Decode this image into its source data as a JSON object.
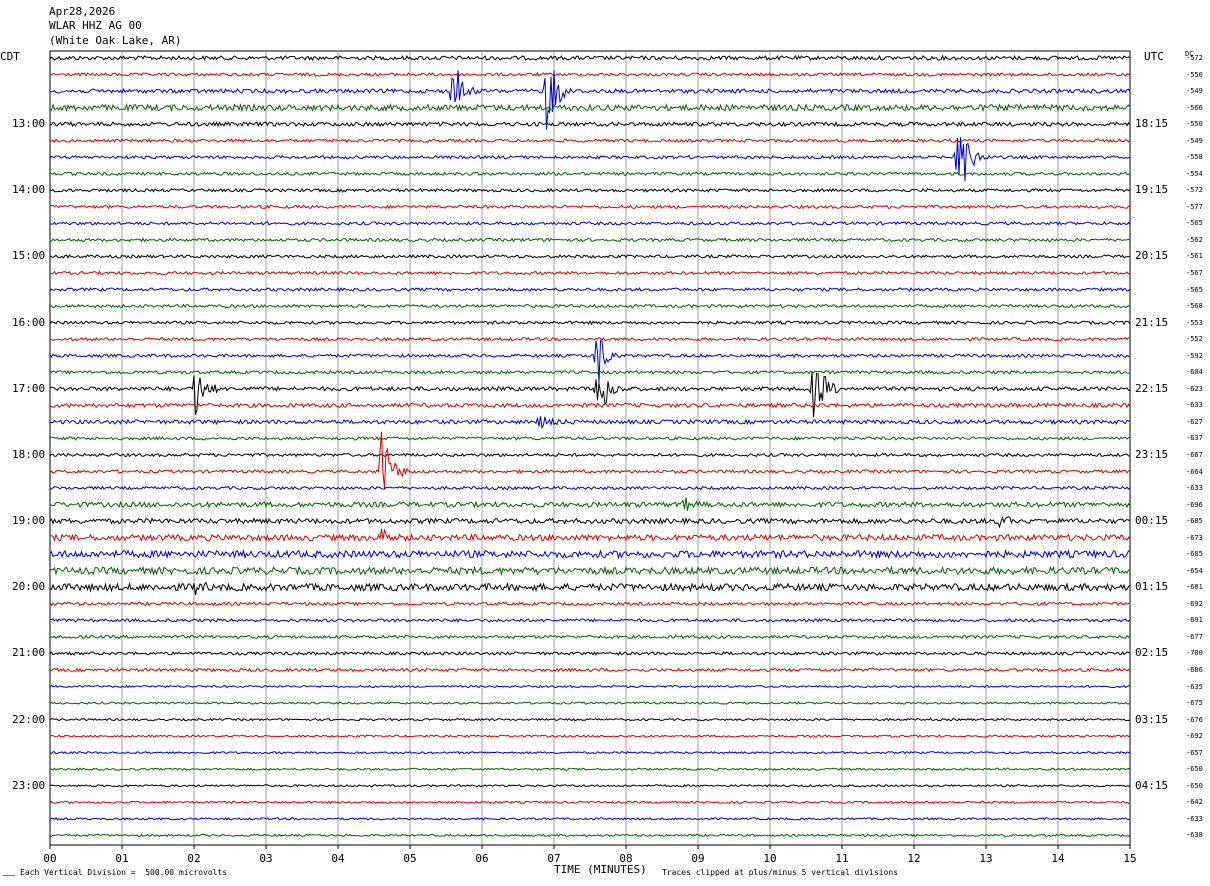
{
  "header": {
    "date": "Apr28,2026",
    "station": "WLAR HHZ AG 00",
    "location": "(White Oak Lake, AR)"
  },
  "left_tz": "CDT",
  "right_tz": "UTC",
  "dc_header": "DC",
  "footer": {
    "scale": "Each Vertical Division =  500.00 microvolts",
    "xlabel": "TIME (MINUTES)",
    "clip": "Traces clipped at plus/minus 5 vertical divisions",
    "corner": "⸺"
  },
  "colors": {
    "trace_cycle": [
      "#000000",
      "#dd0000",
      "#0000cc",
      "#006600"
    ],
    "grid": "#888888"
  },
  "chart_data": {
    "type": "line",
    "title": "WLAR HHZ AG 00",
    "xlabel": "TIME (MINUTES)",
    "ylabel": "",
    "x_ticks": [
      "00",
      "01",
      "02",
      "03",
      "04",
      "05",
      "06",
      "07",
      "08",
      "09",
      "10",
      "11",
      "12",
      "13",
      "14",
      "15"
    ],
    "xlim": [
      0,
      15
    ],
    "grid": true,
    "left_hour_labels": [
      "13:00",
      "14:00",
      "15:00",
      "16:00",
      "17:00",
      "18:00",
      "19:00",
      "20:00",
      "21:00",
      "22:00",
      "23:00"
    ],
    "right_hour_labels": [
      "18:15",
      "19:15",
      "20:15",
      "21:15",
      "22:15",
      "23:15",
      "00:15",
      "01:15",
      "02:15",
      "03:15",
      "04:15"
    ],
    "label_first_row": 4,
    "label_row_step": 4,
    "dc_offsets": [
      "-572",
      "-550",
      "-549",
      "-566",
      "-550",
      "-549",
      "-558",
      "-554",
      "-572",
      "-577",
      "-565",
      "-562",
      "-561",
      "-567",
      "-565",
      "-568",
      "-553",
      "-552",
      "-592",
      "-604",
      "-623",
      "-633",
      "-627",
      "-637",
      "-667",
      "-664",
      "-633",
      "-696",
      "-685",
      "-673",
      "-685",
      "-654",
      "-681",
      "-692",
      "-691",
      "-677",
      "-700",
      "-686",
      "-635",
      "-675",
      "-676",
      "-692",
      "-657",
      "-650",
      "-650",
      "-642",
      "-633",
      "-638"
    ],
    "row_noise_level": [
      2,
      1.5,
      2,
      3,
      2,
      1.5,
      1.5,
      1.5,
      1.5,
      1.5,
      1.5,
      1.5,
      1.5,
      1.5,
      1.5,
      1.5,
      1.5,
      1.5,
      1.5,
      1.5,
      2,
      2,
      2,
      1.5,
      1.5,
      1.5,
      1.5,
      2.5,
      2.5,
      3,
      3.5,
      3.5,
      3.5,
      1.5,
      1.5,
      1.5,
      1.5,
      1.5,
      1,
      1,
      1,
      1,
      1,
      1,
      1,
      1,
      1,
      1
    ],
    "events": [
      {
        "row": 2,
        "minute": 5.6,
        "amplitude": 45,
        "duration": 0.35
      },
      {
        "row": 2,
        "minute": 6.9,
        "amplitude": 48,
        "duration": 0.4
      },
      {
        "row": 6,
        "minute": 12.6,
        "amplitude": 50,
        "duration": 0.45
      },
      {
        "row": 18,
        "minute": 7.6,
        "amplitude": 38,
        "duration": 0.3
      },
      {
        "row": 20,
        "minute": 2.0,
        "amplitude": 35,
        "duration": 0.35
      },
      {
        "row": 20,
        "minute": 7.6,
        "amplitude": 40,
        "duration": 0.4
      },
      {
        "row": 20,
        "minute": 10.6,
        "amplitude": 42,
        "duration": 0.4
      },
      {
        "row": 22,
        "minute": 6.8,
        "amplitude": 15,
        "duration": 0.4
      },
      {
        "row": 25,
        "minute": 4.6,
        "amplitude": 45,
        "duration": 0.4
      },
      {
        "row": 29,
        "minute": 4.6,
        "amplitude": 15,
        "duration": 0.3
      },
      {
        "row": 27,
        "minute": 8.8,
        "amplitude": 8,
        "duration": 0.4
      },
      {
        "row": 28,
        "minute": 13.2,
        "amplitude": 8,
        "duration": 0.4
      },
      {
        "row": 32,
        "minute": 2.0,
        "amplitude": 8,
        "duration": 0.3
      }
    ]
  }
}
